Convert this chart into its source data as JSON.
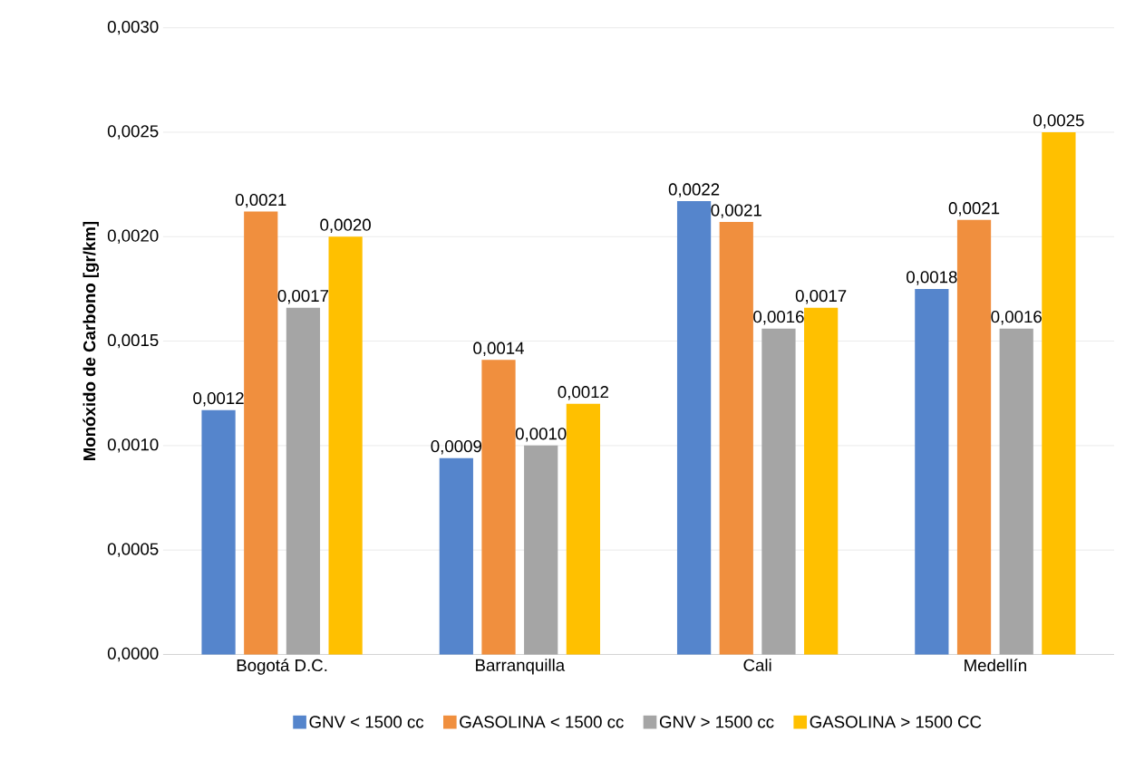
{
  "chart_data": {
    "type": "bar",
    "ylabel": "Monóxido de Carbono [gr/km]",
    "categories": [
      "Bogotá D.C.",
      "Barranquilla",
      "Cali",
      "Medellín"
    ],
    "series": [
      {
        "name": "GNV < 1500 cc",
        "color": "#5585cc",
        "values": [
          0.00117,
          0.00094,
          0.00217,
          0.00175
        ],
        "value_labels": [
          "0,0012",
          "0,0009",
          "0,0022",
          "0,0018"
        ]
      },
      {
        "name": "GASOLINA < 1500 cc",
        "color": "#f08f3e",
        "values": [
          0.00212,
          0.00141,
          0.00207,
          0.00208
        ],
        "value_labels": [
          "0,0021",
          "0,0014",
          "0,0021",
          "0,0021"
        ]
      },
      {
        "name": "GNV > 1500 cc",
        "color": "#a5a5a5",
        "values": [
          0.00166,
          0.001,
          0.00156,
          0.00156
        ],
        "value_labels": [
          "0,0017",
          "0,0010",
          "0,0016",
          "0,0016"
        ]
      },
      {
        "name": "GASOLINA > 1500 CC",
        "color": "#ffc000",
        "values": [
          0.002,
          0.0012,
          0.00166,
          0.0025
        ],
        "value_labels": [
          "0,0020",
          "0,0012",
          "0,0017",
          "0,0025"
        ]
      }
    ],
    "ylim": [
      0,
      0.003
    ],
    "yticks": [
      {
        "value": 0,
        "label": "0,0000"
      },
      {
        "value": 0.0005,
        "label": "0,0005"
      },
      {
        "value": 0.001,
        "label": "0,0010"
      },
      {
        "value": 0.0015,
        "label": "0,0015"
      },
      {
        "value": 0.002,
        "label": "0,0020"
      },
      {
        "value": 0.0025,
        "label": "0,0025"
      },
      {
        "value": 0.003,
        "label": "0,0030"
      }
    ],
    "grid": "y",
    "legend": "bottom"
  }
}
